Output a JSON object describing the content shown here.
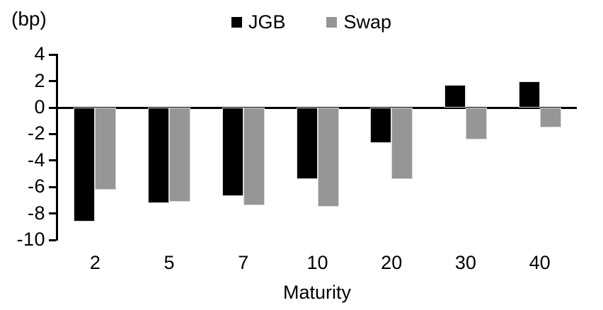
{
  "chart_data": {
    "type": "bar",
    "title": "",
    "unit_label": "(bp)",
    "xlabel": "Maturity",
    "ylabel": "",
    "categories": [
      "2",
      "5",
      "7",
      "10",
      "20",
      "30",
      "40"
    ],
    "series": [
      {
        "name": "JGB",
        "color": "#000000",
        "values": [
          -8.6,
          -7.2,
          -6.7,
          -5.4,
          -2.7,
          1.7,
          2.0
        ]
      },
      {
        "name": "Swap",
        "color": "#969696",
        "values": [
          -6.2,
          -7.1,
          -7.4,
          -7.5,
          -5.4,
          -2.4,
          -1.5
        ]
      }
    ],
    "yticks": [
      4,
      2,
      0,
      -2,
      -4,
      -6,
      -8,
      -10
    ],
    "ylim": [
      -10,
      4
    ],
    "legend_position": "top-center",
    "grid": false,
    "axis_color": "#000000",
    "bar_border_color": "#d9d9d9",
    "background_color": "#ffffff"
  }
}
